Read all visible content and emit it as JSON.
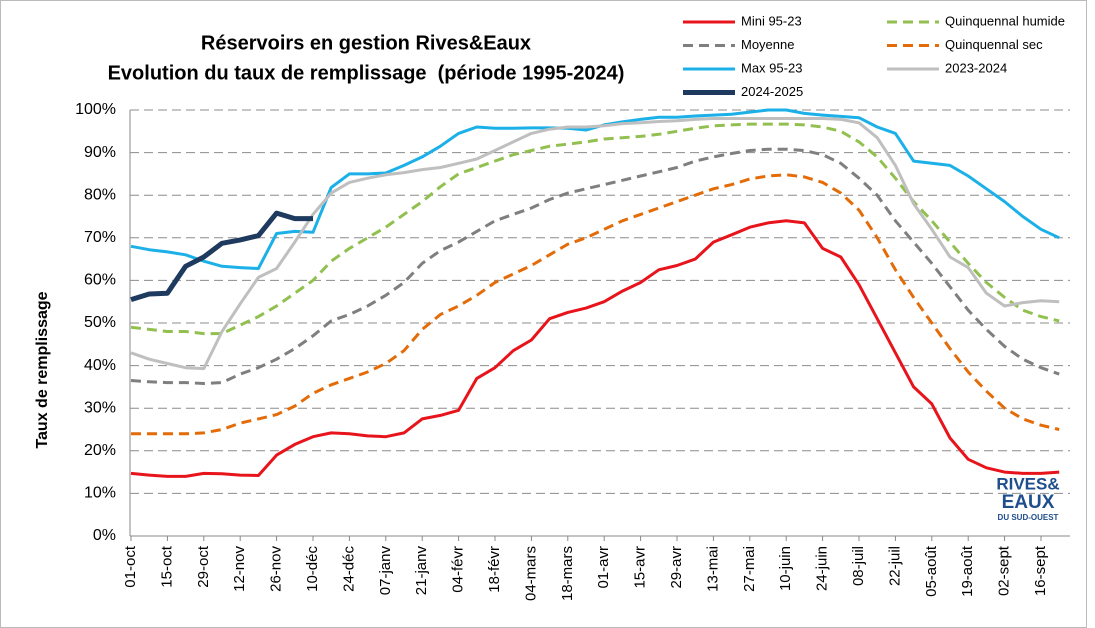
{
  "chart_data": {
    "type": "line",
    "title": [
      "Réservoirs en gestion Rives&Eaux",
      "Evolution du taux de remplissage  (période 1995-2024)"
    ],
    "y_label": "Taux de remplissage",
    "categories": [
      "01-oct",
      null,
      "15-oct",
      null,
      "29-oct",
      null,
      "12-nov",
      null,
      "26-nov",
      null,
      "10-déc",
      null,
      "24-déc",
      null,
      "07-janv",
      null,
      "21-janv",
      null,
      "04-févr",
      null,
      "18-févr",
      null,
      "04-mars",
      null,
      "18-mars",
      null,
      "01-avr",
      null,
      "15-avr",
      null,
      "29-avr",
      null,
      "13-mai",
      null,
      "27-mai",
      null,
      "10-juin",
      null,
      "24-juin",
      null,
      "08-juil",
      null,
      "22-juil",
      null,
      "05-août",
      null,
      "19-août",
      null,
      "02-sept",
      null,
      "16-sept",
      null
    ],
    "ylim": [
      0,
      100
    ],
    "yticks": [
      {
        "value": 0,
        "label": "0%"
      },
      {
        "value": 10,
        "label": "10%"
      },
      {
        "value": 20,
        "label": "20%"
      },
      {
        "value": 30,
        "label": "30%"
      },
      {
        "value": 40,
        "label": "40%"
      },
      {
        "value": 50,
        "label": "50%"
      },
      {
        "value": 60,
        "label": "60%"
      },
      {
        "value": 70,
        "label": "70%"
      },
      {
        "value": 80,
        "label": "80%"
      },
      {
        "value": 90,
        "label": "90%"
      },
      {
        "value": 100,
        "label": "100%"
      }
    ],
    "grid": true,
    "legend": "top-right",
    "series": [
      {
        "name": "Mini 95-23",
        "color": "#e8141c",
        "dashed": false,
        "values": [
          14.7,
          14.3,
          14.0,
          14.0,
          14.7,
          14.6,
          14.3,
          14.2,
          19.0,
          21.5,
          23.3,
          24.2,
          24.0,
          23.5,
          23.3,
          24.2,
          27.5,
          28.3,
          29.5,
          37,
          39.5,
          43.5,
          46,
          51,
          52.5,
          53.5,
          55,
          57.5,
          59.5,
          62.5,
          63.5,
          65,
          69,
          70.7,
          72.5,
          73.5,
          74,
          73.5,
          67.5,
          65.5,
          59,
          51,
          43,
          35,
          31,
          23,
          18,
          16,
          15,
          14.7,
          14.7,
          15
        ]
      },
      {
        "name": "Quinquennal humide",
        "color": "#92c050",
        "dashed": true,
        "values": [
          49,
          48.5,
          48,
          48,
          47.5,
          47.5,
          49.5,
          51.5,
          54,
          57,
          60,
          64.5,
          67.5,
          70,
          72.5,
          75.5,
          78.5,
          82,
          85,
          86.5,
          88,
          89.5,
          90.5,
          91.5,
          92,
          92.5,
          93.2,
          93.5,
          93.8,
          94.3,
          95,
          95.7,
          96.3,
          96.5,
          96.7,
          96.7,
          96.7,
          96.5,
          96,
          95,
          92.5,
          89,
          84,
          78.5,
          74,
          69,
          64,
          59.5,
          56,
          53,
          51.5,
          50.5
        ]
      },
      {
        "name": "Moyenne",
        "color": "#7f7f7f",
        "dashed": true,
        "values": [
          36.5,
          36.2,
          36,
          36,
          35.8,
          36,
          38,
          39.5,
          41.5,
          44,
          47,
          50.5,
          52,
          54,
          56.5,
          59.5,
          64,
          67,
          69,
          71.5,
          74,
          75.5,
          77,
          79,
          80.5,
          81.5,
          82.5,
          83.5,
          84.5,
          85.5,
          86.5,
          88,
          89,
          89.8,
          90.5,
          90.8,
          90.8,
          90.5,
          89.5,
          87.5,
          84,
          80,
          74,
          69,
          64,
          58.5,
          53,
          48.5,
          44.5,
          41.5,
          39.5,
          38
        ]
      },
      {
        "name": "Quinquennal sec",
        "color": "#e36c09",
        "dashed": true,
        "values": [
          24,
          24,
          24,
          24,
          24.2,
          25,
          26.5,
          27.5,
          28.5,
          30.5,
          33.5,
          35.5,
          37,
          38.5,
          40.5,
          43.5,
          48.5,
          52,
          54,
          56.5,
          59.5,
          61.5,
          63.5,
          66,
          68.5,
          70,
          72,
          74,
          75.5,
          77,
          78.5,
          80,
          81.5,
          82.5,
          83.8,
          84.5,
          84.8,
          84.3,
          83,
          80.5,
          76.5,
          70,
          62.5,
          56,
          50,
          44,
          38.5,
          34,
          30,
          27.5,
          26,
          25
        ]
      },
      {
        "name": "Max 95-23",
        "color": "#1cb0e8",
        "dashed": false,
        "values": [
          68,
          67.2,
          66.7,
          66,
          64.5,
          63.3,
          63,
          62.8,
          71,
          71.5,
          71.3,
          81.8,
          85,
          85,
          85.2,
          87,
          89,
          91.5,
          94.5,
          96,
          95.7,
          95.7,
          95.8,
          95.8,
          95.7,
          95.3,
          96.5,
          97.2,
          97.8,
          98.3,
          98.3,
          98.6,
          98.8,
          99,
          99.5,
          100,
          100,
          99.2,
          98.8,
          98.5,
          98.2,
          96,
          94.5,
          88,
          87.5,
          87,
          84.5,
          81.5,
          78.5,
          75,
          72,
          70
        ]
      },
      {
        "name": "2023-2024",
        "color": "#bfbfbf",
        "dashed": false,
        "values": [
          43,
          41.5,
          40.5,
          39.5,
          39.3,
          48,
          54.5,
          60.7,
          62.8,
          69,
          75.5,
          80.5,
          83,
          84,
          84.8,
          85.3,
          86,
          86.5,
          87.5,
          88.5,
          90.5,
          92.5,
          94.5,
          95.5,
          96,
          96,
          96.3,
          96.8,
          97,
          97.3,
          97.5,
          97.8,
          98,
          98,
          98,
          98,
          98,
          98,
          98,
          97.8,
          97,
          93.5,
          87,
          78,
          72,
          65.5,
          63,
          57,
          54,
          54.8,
          55.2,
          55
        ]
      },
      {
        "name": "2024-2025",
        "color": "#1f3a5f",
        "dashed": false,
        "values": [
          55.5,
          56.8,
          57,
          63.3,
          65.5,
          68.7,
          69.5,
          70.5,
          75.8,
          74.5,
          74.5,
          null,
          null,
          null,
          null,
          null,
          null,
          null,
          null,
          null,
          null,
          null,
          null,
          null,
          null,
          null,
          null,
          null,
          null,
          null,
          null,
          null,
          null,
          null,
          null,
          null,
          null,
          null,
          null,
          null,
          null,
          null,
          null,
          null,
          null,
          null,
          null,
          null,
          null,
          null,
          null,
          null
        ]
      }
    ]
  },
  "logo": {
    "line1": "RIVES&",
    "line2": "EAUX",
    "line3": "DU SUD-OUEST"
  }
}
